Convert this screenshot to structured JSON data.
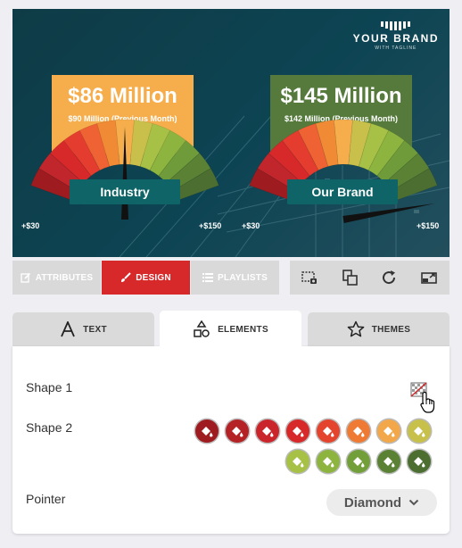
{
  "preview": {
    "brand": {
      "name": "YOUR BRAND",
      "tagline": "WITH TAGLINE"
    },
    "left_gauge": {
      "headline": "$86 Million",
      "subline": "$90 Million (Previous Month)",
      "label": "Industry",
      "min_label": "+$30",
      "max_label": "+$150",
      "panel_color": "#f6ae4d"
    },
    "right_gauge": {
      "headline": "$145 Million",
      "subline": "$142 Million (Previous Month)",
      "label": "Our Brand",
      "min_label": "+$30",
      "max_label": "+$150",
      "panel_color": "#557a3c"
    },
    "gauge_colors": [
      "#9e1b1f",
      "#c0262b",
      "#d7282a",
      "#e43c2e",
      "#ee6234",
      "#f08a35",
      "#f6ae4d",
      "#c9c04c",
      "#a6c146",
      "#8cb43f",
      "#6f9b3a",
      "#5a8134",
      "#4c6e31"
    ]
  },
  "toolbar": {
    "attributes_label": "ATTRIBUTES",
    "design_label": "DESIGN",
    "playlists_label": "PLAYLISTS",
    "icons": [
      "crop-screenshot-icon",
      "layers-icon",
      "refresh-icon",
      "resize-icon"
    ]
  },
  "tabs": [
    {
      "label": "TEXT",
      "icon": "text-icon"
    },
    {
      "label": "ELEMENTS",
      "icon": "shapes-icon"
    },
    {
      "label": "THEMES",
      "icon": "star-icon"
    }
  ],
  "elements_panel": {
    "shape1_label": "Shape 1",
    "shape2_label": "Shape 2",
    "pointer_label": "Pointer",
    "pointer_value": "Diamond",
    "shape2_colors": [
      "#9e1b1f",
      "#b52226",
      "#c9252a",
      "#d7282a",
      "#e4432e",
      "#ef7a33",
      "#f2a84a",
      "#c7c14b",
      "#a6c146",
      "#8cb43f",
      "#739f3b",
      "#5a8134",
      "#4c6e31"
    ]
  },
  "colors": {
    "accent": "#d7282a"
  }
}
